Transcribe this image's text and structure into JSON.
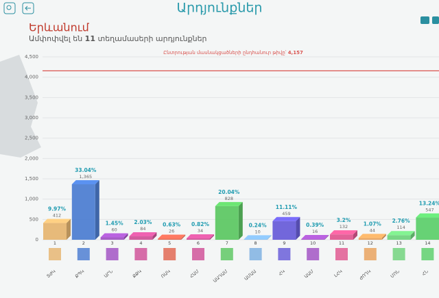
{
  "header": {
    "title": "Արդյունքներ"
  },
  "region": "Երևանում",
  "summary": {
    "before": "Ամփոփվել են",
    "count": "11",
    "after": "տեղամասերի արդյունքներ"
  },
  "chart_data": {
    "type": "bar3d",
    "categories": [
      "1",
      "2",
      "3",
      "4",
      "5",
      "6",
      "7",
      "8",
      "9",
      "10",
      "11",
      "12",
      "13",
      "14"
    ],
    "parties": [
      "ՏԺԿ",
      "ՔՊԿ",
      "ԱՐՆ",
      "ՔՔԿ",
      "ՌԱԿ",
      "ՀԱՄ",
      "ԱԱԴԱՄ",
      "ԱՄԱԱ",
      "ՀԿ",
      "ԱԱՄ",
      "ԼՀԿ",
      "ԺՈՂԿ",
      "ՄՈՆ",
      "ՀՆ"
    ],
    "values": [
      412,
      1365,
      60,
      84,
      26,
      34,
      828,
      10,
      459,
      16,
      132,
      44,
      114,
      547
    ],
    "value_labels": [
      "412",
      "1,365",
      "60",
      "84",
      "26",
      "34",
      "828",
      "10",
      "459",
      "16",
      "132",
      "44",
      "114",
      "547"
    ],
    "percents": [
      9.97,
      33.04,
      1.45,
      2.03,
      0.63,
      0.82,
      20.04,
      0.24,
      11.11,
      0.39,
      3.2,
      1.07,
      2.76,
      13.24
    ],
    "percent_labels": [
      "9.97%",
      "33.04%",
      "1.45%",
      "2.03%",
      "0.63%",
      "0.82%",
      "20.04%",
      "0.24%",
      "11.11%",
      "0.39%",
      "3.2%",
      "1.07%",
      "2.76%",
      "13.24%"
    ],
    "colors": [
      "#e6b673",
      "#4f7fd2",
      "#a255c4",
      "#d0559a",
      "#e26a55",
      "#d0559a",
      "#5fc865",
      "#7fb1e2",
      "#6a5fd9",
      "#a255c4",
      "#e05a92",
      "#e9a35f",
      "#72d47f",
      "#5fd06e"
    ],
    "ylim": [
      0,
      4500
    ],
    "yticks": [
      0,
      500,
      {
        "value": 1000,
        "label": "1,000"
      },
      {
        "value": 1500,
        "label": "1,500"
      },
      {
        "value": 2000,
        "label": "2,000"
      },
      {
        "value": 2500,
        "label": "2,500"
      },
      {
        "value": 3000,
        "label": "3,000"
      },
      {
        "value": 3500,
        "label": "3,500"
      },
      {
        "value": 4000,
        "label": "4,000"
      },
      {
        "value": 4500,
        "label": "4,500"
      }
    ],
    "grid": true,
    "reference": {
      "value": 4157,
      "label": "Ընտրության մասնակցածների ընդհանուր թիվը՝",
      "value_label": "4,157",
      "color": "#d9534f"
    }
  }
}
